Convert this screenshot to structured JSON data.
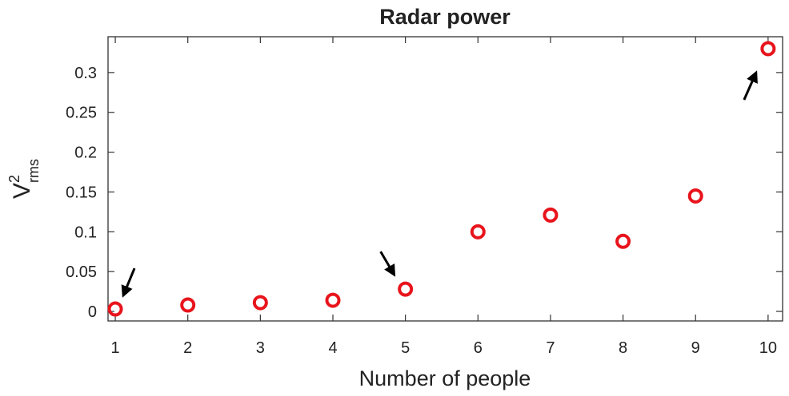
{
  "chart_data": {
    "type": "scatter",
    "title": "Radar power",
    "xlabel": "Number of people",
    "ylabel": "V",
    "ylabel_superscript": "2",
    "ylabel_subscript": "rms",
    "x": [
      1,
      2,
      3,
      4,
      5,
      6,
      7,
      8,
      9,
      10
    ],
    "y": [
      0.003,
      0.008,
      0.011,
      0.014,
      0.028,
      0.1,
      0.121,
      0.088,
      0.145,
      0.33
    ],
    "xlim": [
      0.9,
      10.2
    ],
    "ylim": [
      -0.012,
      0.345
    ],
    "xticks": [
      1,
      2,
      3,
      4,
      5,
      6,
      7,
      8,
      9,
      10
    ],
    "xtick_labels": [
      "1",
      "2",
      "3",
      "4",
      "5",
      "6",
      "7",
      "8",
      "9",
      "10"
    ],
    "yticks": [
      0,
      0.05,
      0.1,
      0.15,
      0.2,
      0.25,
      0.3
    ],
    "ytick_labels": [
      "0",
      "0.05",
      "0.1",
      "0.15",
      "0.2",
      "0.25",
      "0.3"
    ],
    "marker": "open-circle",
    "marker_color": "#e8141c",
    "grid": false,
    "annotations": [
      {
        "type": "arrow",
        "points_to_x": 1
      },
      {
        "type": "arrow",
        "points_to_x": 5
      },
      {
        "type": "arrow",
        "points_to_x": 10
      }
    ]
  }
}
